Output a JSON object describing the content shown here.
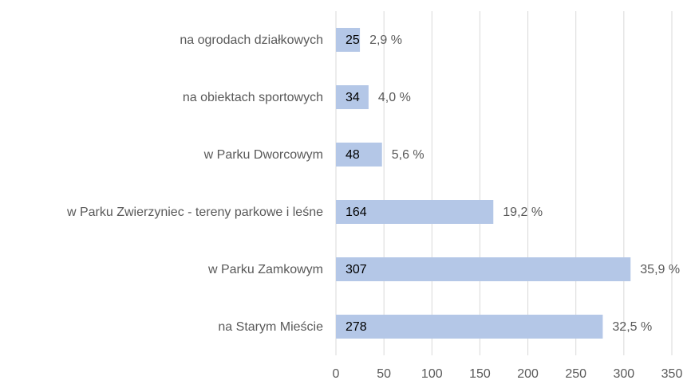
{
  "chart_data": {
    "type": "bar",
    "orientation": "horizontal",
    "categories": [
      "na ogrodach działkowych",
      "na obiektach sportowych",
      "w Parku Dworcowym",
      "w Parku Zwierzyniec - tereny parkowe i leśne",
      "w Parku Zamkowym",
      "na Starym Mieście"
    ],
    "values": [
      25,
      34,
      48,
      164,
      307,
      278
    ],
    "percent_labels": [
      "2,9 %",
      "4,0 %",
      "5,6 %",
      "19,2 %",
      "35,9 %",
      "32,5 %"
    ],
    "color": "#b4c7e7",
    "xlim": [
      0,
      350
    ],
    "xticks": [
      0,
      50,
      100,
      150,
      200,
      250,
      300,
      350
    ],
    "grid": true
  }
}
